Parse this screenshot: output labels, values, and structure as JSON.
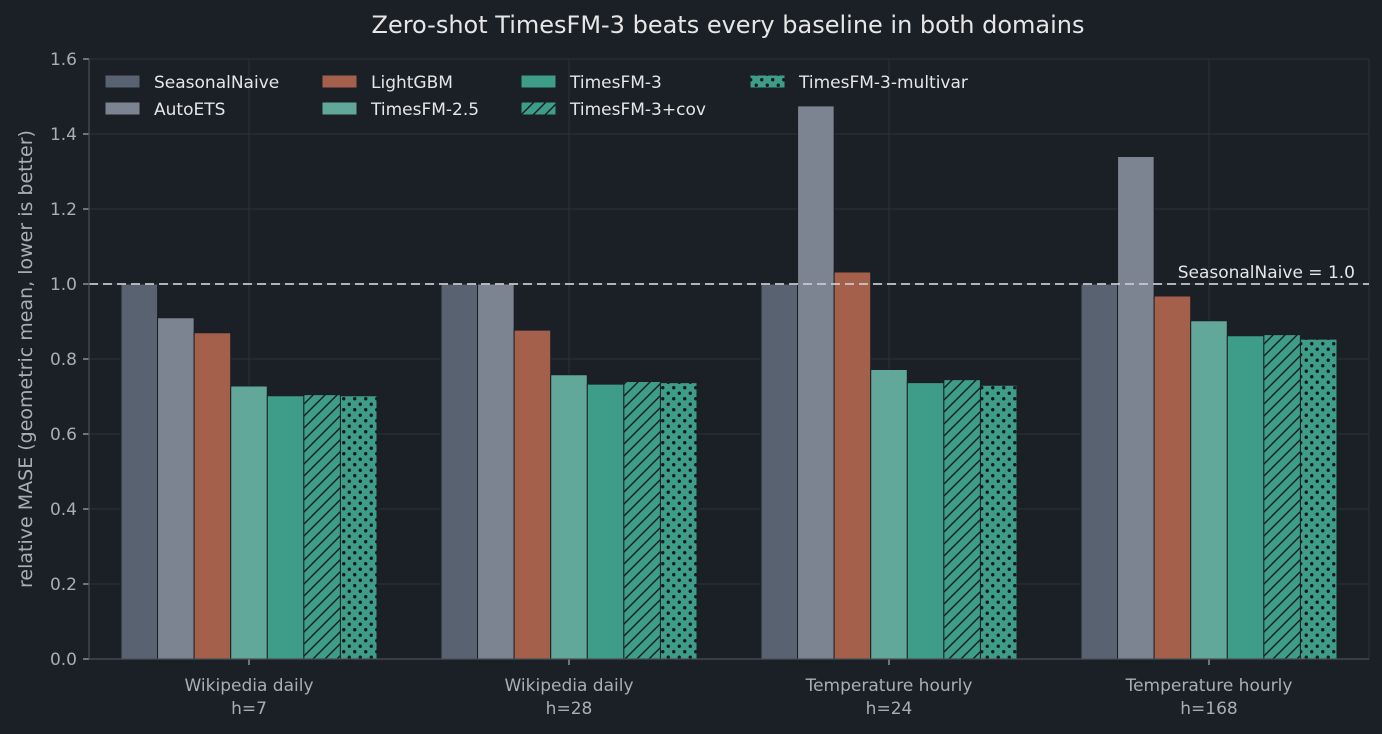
{
  "chart_data": {
    "type": "bar",
    "title": "Zero-shot TimesFM-3 beats every baseline in both domains",
    "xlabel": "",
    "ylabel": "relative MASE  (geometric mean, lower is better)",
    "ylim": [
      0,
      1.6
    ],
    "yticks": [
      "0.0",
      "0.2",
      "0.4",
      "0.6",
      "0.8",
      "1.0",
      "1.2",
      "1.4",
      "1.6"
    ],
    "grid": true,
    "legend_position": "top-left",
    "categories": [
      [
        "Wikipedia daily",
        "h=7"
      ],
      [
        "Wikipedia daily",
        "h=28"
      ],
      [
        "Temperature hourly",
        "h=24"
      ],
      [
        "Temperature hourly",
        "h=168"
      ]
    ],
    "series": [
      {
        "name": "SeasonalNaive",
        "color": "#596270",
        "pattern": "solid",
        "values": [
          1.0,
          1.0,
          1.0,
          1.0
        ]
      },
      {
        "name": "AutoETS",
        "color": "#7c8491",
        "pattern": "solid",
        "values": [
          0.91,
          1.0,
          1.475,
          1.34
        ]
      },
      {
        "name": "LightGBM",
        "color": "#a4604b",
        "pattern": "solid",
        "values": [
          0.87,
          0.877,
          1.032,
          0.968
        ]
      },
      {
        "name": "TimesFM-2.5",
        "color": "#62a89a",
        "pattern": "solid",
        "values": [
          0.728,
          0.758,
          0.772,
          0.902
        ]
      },
      {
        "name": "TimesFM-3",
        "color": "#3e9d89",
        "pattern": "solid",
        "values": [
          0.702,
          0.733,
          0.737,
          0.862
        ]
      },
      {
        "name": "TimesFM-3+cov",
        "color": "#3e9d89",
        "pattern": "hatch",
        "values": [
          0.705,
          0.74,
          0.745,
          0.865
        ]
      },
      {
        "name": "TimesFM-3-multivar",
        "color": "#3e9d89",
        "pattern": "dots",
        "values": [
          0.702,
          0.737,
          0.73,
          0.853
        ]
      }
    ],
    "reference_line": {
      "value": 1.0,
      "label": "SeasonalNaive = 1.0",
      "color": "#c9ccd1"
    },
    "colors": {
      "background": "#1b1f26",
      "text": "#e6e6e6",
      "axis_text": "#a9aeb6",
      "grid": "#2c323b"
    }
  }
}
